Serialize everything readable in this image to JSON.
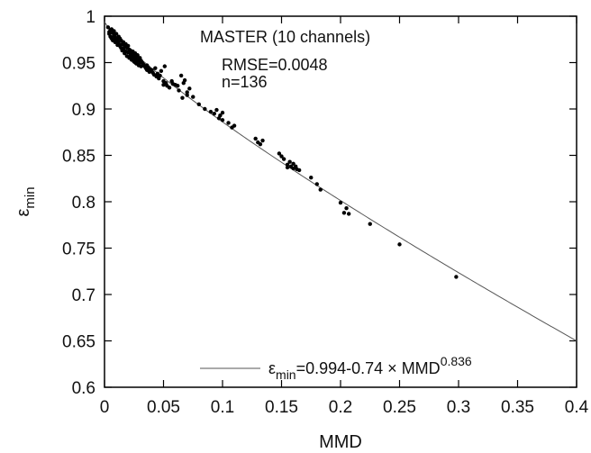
{
  "chart_data": {
    "type": "scatter",
    "title": "MASTER (10 channels)",
    "xlabel": "MMD",
    "ylabel": {
      "base": "ε",
      "sub": "min"
    },
    "xlim": [
      0,
      0.4
    ],
    "ylim": [
      0.6,
      1.0
    ],
    "xticks": [
      "0",
      "0.05",
      "0.1",
      "0.15",
      "0.2",
      "0.25",
      "0.3",
      "0.35",
      "0.4"
    ],
    "yticks": [
      "0.6",
      "0.65",
      "0.7",
      "0.75",
      "0.8",
      "0.85",
      "0.9",
      "0.95",
      "1"
    ],
    "grid": false,
    "annotations": {
      "rmse": "RMSE=0.0048",
      "n": "n=136"
    },
    "legend": {
      "placement": "bottom-right",
      "prefix": "ε",
      "prefix_sub": "min",
      "mid": "=0.994-0.74 × MMD",
      "exponent": "0.836"
    },
    "fit": {
      "a": 0.994,
      "b": 0.74,
      "p": 0.836
    },
    "series": [
      {
        "x": [
          0.003,
          0.004,
          0.004,
          0.005,
          0.005,
          0.006,
          0.006,
          0.007,
          0.007,
          0.008,
          0.008,
          0.009,
          0.009,
          0.01,
          0.01,
          0.011,
          0.011,
          0.012,
          0.012,
          0.013,
          0.013,
          0.014,
          0.014,
          0.015,
          0.015,
          0.016,
          0.016,
          0.017,
          0.017,
          0.018,
          0.018,
          0.019,
          0.019,
          0.02,
          0.02,
          0.021,
          0.021,
          0.022,
          0.022,
          0.023,
          0.023,
          0.024,
          0.024,
          0.025,
          0.025,
          0.026,
          0.026,
          0.027,
          0.027,
          0.028,
          0.028,
          0.029,
          0.029,
          0.03,
          0.03,
          0.031,
          0.031,
          0.032,
          0.033,
          0.034,
          0.035,
          0.036,
          0.036,
          0.037,
          0.038,
          0.038,
          0.039,
          0.04,
          0.041,
          0.042,
          0.043,
          0.044,
          0.045,
          0.046,
          0.047,
          0.048,
          0.05,
          0.05,
          0.051,
          0.052,
          0.053,
          0.055,
          0.057,
          0.058,
          0.06,
          0.062,
          0.063,
          0.065,
          0.066,
          0.067,
          0.068,
          0.07,
          0.07,
          0.072,
          0.075,
          0.08,
          0.085,
          0.09,
          0.093,
          0.095,
          0.097,
          0.098,
          0.1,
          0.1,
          0.105,
          0.108,
          0.11,
          0.128,
          0.13,
          0.132,
          0.134,
          0.148,
          0.15,
          0.152,
          0.155,
          0.155,
          0.157,
          0.158,
          0.16,
          0.16,
          0.162,
          0.163,
          0.165,
          0.175,
          0.18,
          0.183,
          0.2,
          0.203,
          0.205,
          0.207,
          0.225,
          0.25,
          0.298,
          0.01,
          0.018,
          0.026
        ],
        "y": [
          0.988,
          0.983,
          0.981,
          0.985,
          0.978,
          0.986,
          0.976,
          0.982,
          0.974,
          0.984,
          0.979,
          0.977,
          0.972,
          0.981,
          0.975,
          0.973,
          0.969,
          0.978,
          0.971,
          0.976,
          0.968,
          0.974,
          0.966,
          0.97,
          0.963,
          0.972,
          0.965,
          0.968,
          0.96,
          0.97,
          0.962,
          0.966,
          0.957,
          0.968,
          0.961,
          0.964,
          0.955,
          0.963,
          0.958,
          0.96,
          0.953,
          0.962,
          0.956,
          0.958,
          0.951,
          0.96,
          0.954,
          0.956,
          0.949,
          0.958,
          0.952,
          0.953,
          0.947,
          0.955,
          0.95,
          0.952,
          0.946,
          0.95,
          0.948,
          0.946,
          0.944,
          0.947,
          0.942,
          0.945,
          0.943,
          0.94,
          0.941,
          0.942,
          0.939,
          0.937,
          0.944,
          0.935,
          0.938,
          0.933,
          0.936,
          0.941,
          0.93,
          0.926,
          0.946,
          0.928,
          0.925,
          0.923,
          0.93,
          0.927,
          0.926,
          0.925,
          0.92,
          0.936,
          0.912,
          0.928,
          0.931,
          0.918,
          0.915,
          0.922,
          0.913,
          0.905,
          0.9,
          0.897,
          0.895,
          0.899,
          0.89,
          0.893,
          0.896,
          0.888,
          0.885,
          0.88,
          0.882,
          0.868,
          0.864,
          0.862,
          0.866,
          0.852,
          0.849,
          0.846,
          0.84,
          0.837,
          0.843,
          0.838,
          0.836,
          0.841,
          0.838,
          0.835,
          0.834,
          0.826,
          0.819,
          0.813,
          0.799,
          0.788,
          0.793,
          0.787,
          0.776,
          0.754,
          0.719,
          0.975,
          0.962,
          0.95
        ]
      }
    ]
  }
}
